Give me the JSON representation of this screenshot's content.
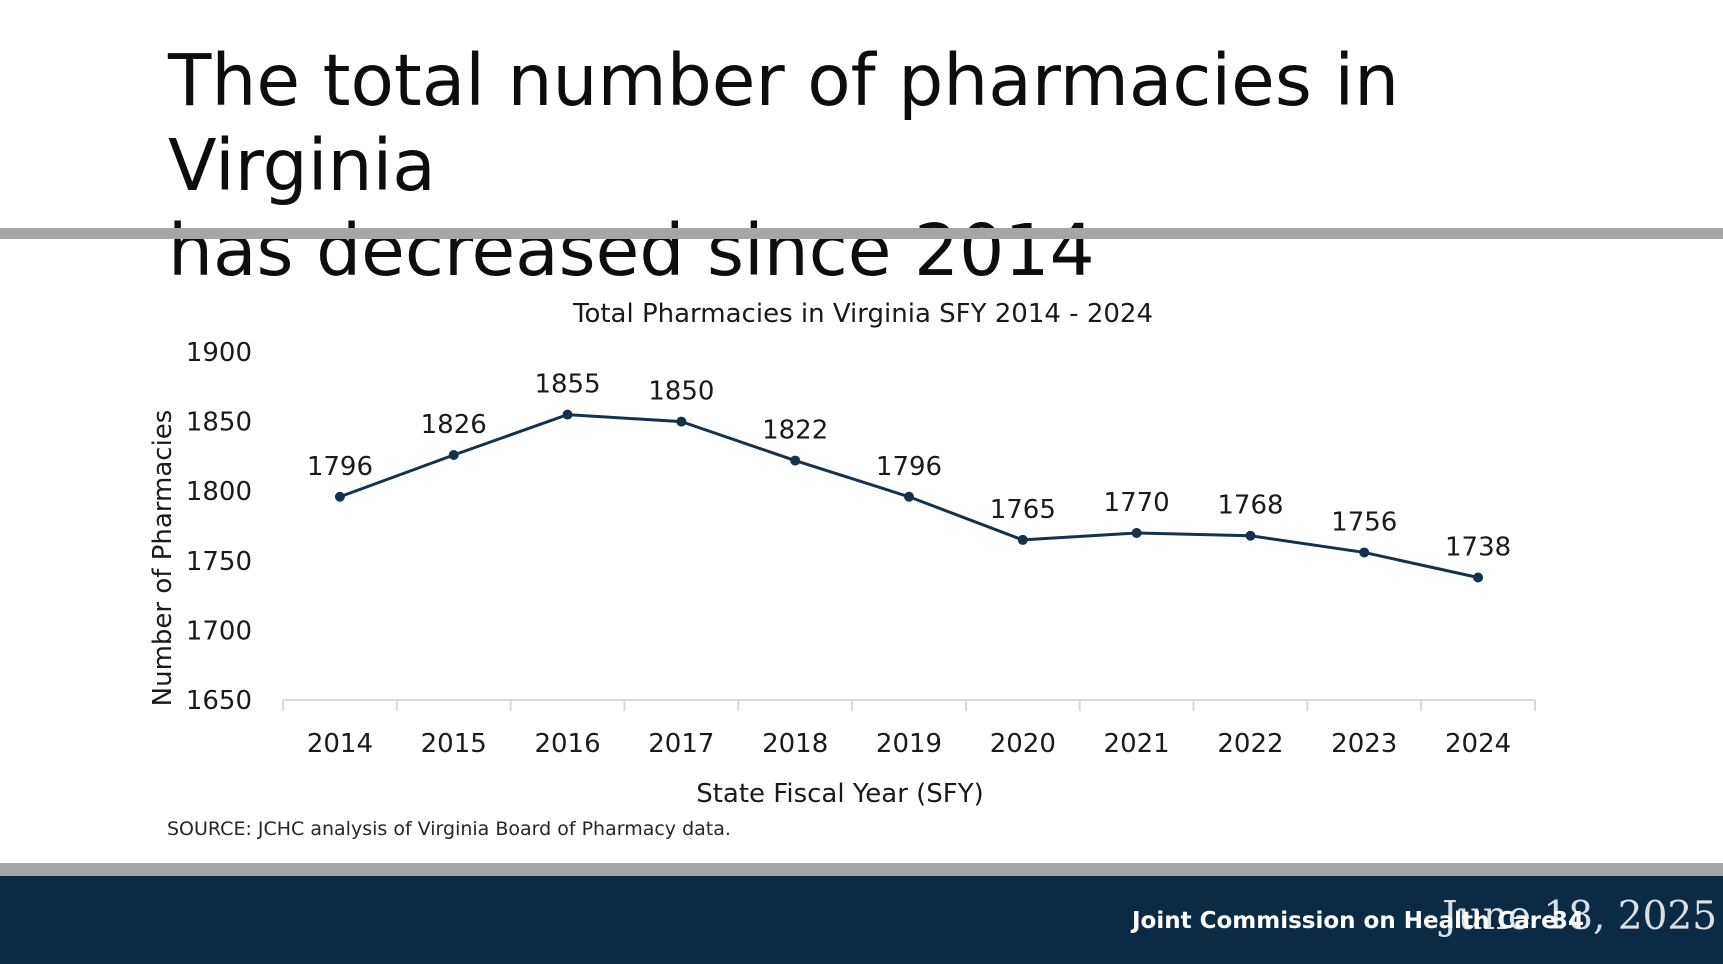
{
  "slide": {
    "title_line1": "The total number of pharmacies in Virginia",
    "title_line2": "has decreased since 2014",
    "source": "SOURCE: JCHC analysis of Virginia Board of Pharmacy data.",
    "footer_org": "Joint Commission on Health Care",
    "footer_slide_number": "34",
    "footer_date": "June 18, 2025",
    "colors": {
      "line": "#16324a",
      "footer_background": "#0b2a44",
      "divider": "#a6a6a6"
    }
  },
  "chart_data": {
    "type": "line",
    "title": "Total Pharmacies in Virginia SFY 2014 - 2024",
    "xlabel": "State Fiscal Year (SFY)",
    "ylabel": "Number of Pharmacies",
    "categories": [
      "2014",
      "2015",
      "2016",
      "2017",
      "2018",
      "2019",
      "2020",
      "2021",
      "2022",
      "2023",
      "2024"
    ],
    "series": [
      {
        "name": "Total Pharmacies",
        "values": [
          1796,
          1826,
          1855,
          1850,
          1822,
          1796,
          1765,
          1770,
          1768,
          1756,
          1738
        ]
      }
    ],
    "ylim": [
      1650,
      1900
    ],
    "yticks": [
      1650,
      1700,
      1750,
      1800,
      1850,
      1900
    ],
    "grid": false,
    "data_labels": true
  }
}
